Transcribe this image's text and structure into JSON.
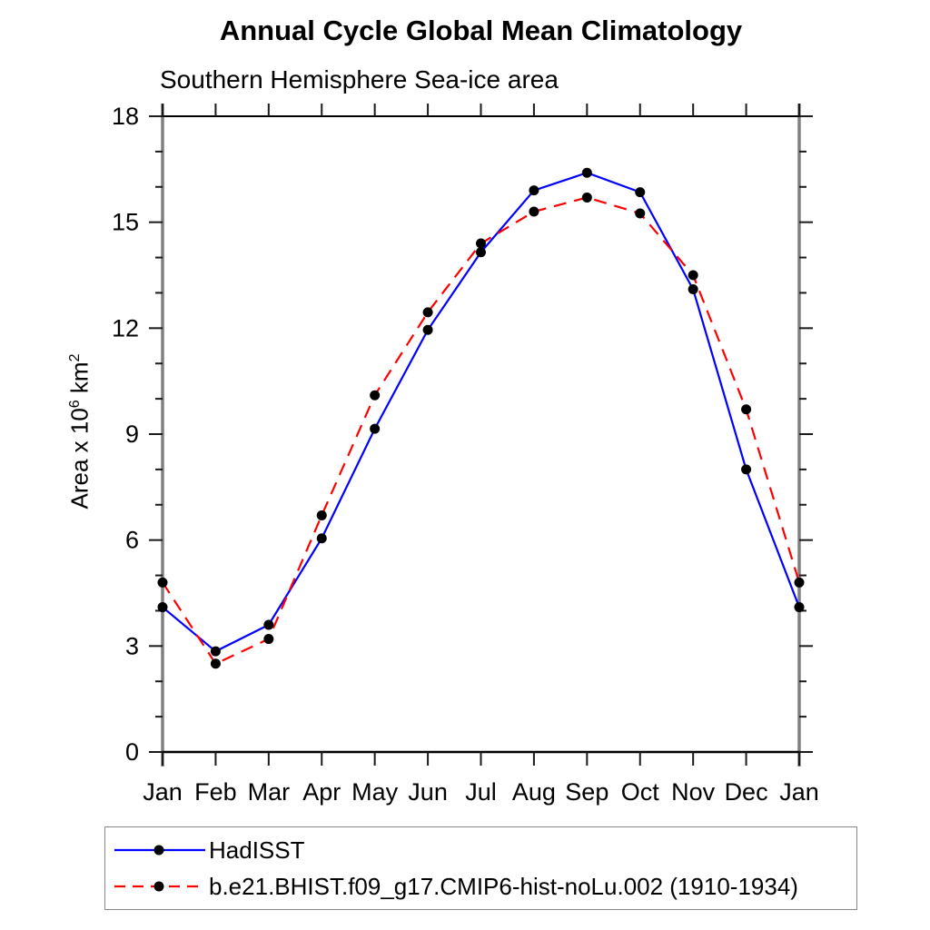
{
  "title": "Annual Cycle Global Mean Climatology",
  "subtitle": "Southern Hemisphere Sea-ice area",
  "ylabel_parts": {
    "a": "Area x 10",
    "sup1": "6",
    "b": " km",
    "sup2": "2"
  },
  "chart_data": {
    "type": "line",
    "title": "Annual Cycle Global Mean Climatology",
    "subtitle": "Southern Hemisphere Sea-ice area",
    "categories": [
      "Jan",
      "Feb",
      "Mar",
      "Apr",
      "May",
      "Jun",
      "Jul",
      "Aug",
      "Sep",
      "Oct",
      "Nov",
      "Dec",
      "Jan"
    ],
    "ylabel": "Area x 10^6 km^2",
    "ylim": [
      0,
      18
    ],
    "ytick_major": [
      0,
      3,
      6,
      9,
      12,
      15,
      18
    ],
    "ytick_minor_step": 1,
    "grid": false,
    "legend_position": "bottom-left-box",
    "marker": "filled-black-circle",
    "marker_color": "#000000",
    "series": [
      {
        "name": "HadISST",
        "color": "#0000ff",
        "style": "solid",
        "values": [
          4.1,
          2.85,
          3.6,
          6.05,
          9.15,
          11.95,
          14.15,
          15.9,
          16.4,
          15.85,
          13.1,
          8.0,
          4.1
        ]
      },
      {
        "name": "b.e21.BHIST.f09_g17.CMIP6-hist-noLu.002 (1910-1934)",
        "color": "#ff0000",
        "style": "dashed",
        "values": [
          4.8,
          2.5,
          3.2,
          6.7,
          10.1,
          12.45,
          14.4,
          15.3,
          15.7,
          15.25,
          13.5,
          9.7,
          4.8
        ]
      }
    ]
  },
  "colors": {
    "frame": "#000000",
    "spine_gray": "#808080",
    "tick": "#1a1a1a",
    "text": "#000000",
    "legend_border": "#888888"
  }
}
